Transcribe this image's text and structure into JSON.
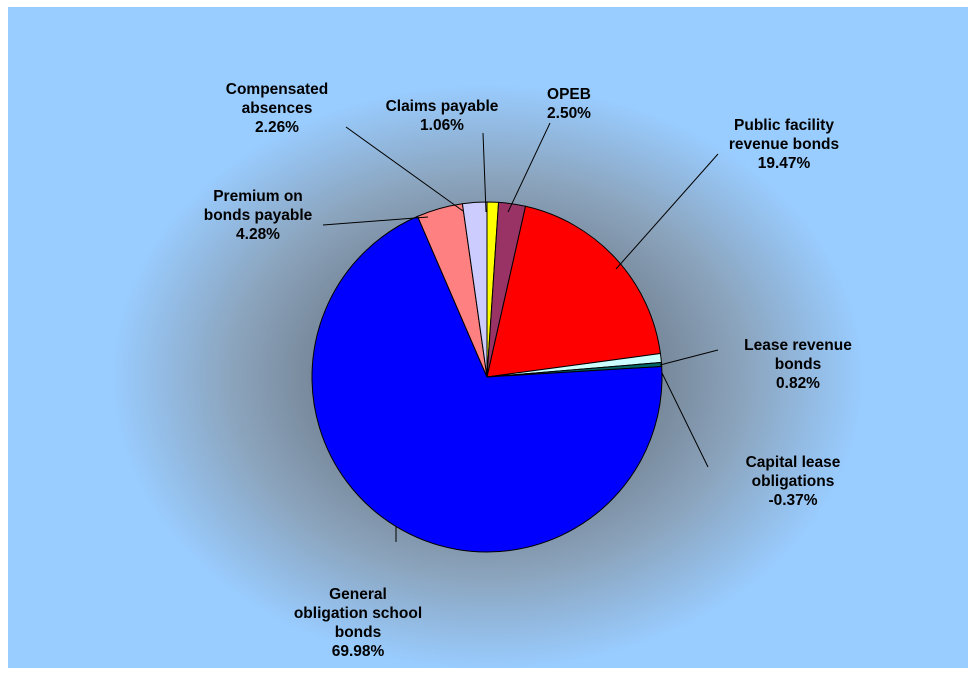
{
  "chart_data": {
    "type": "pie",
    "slices": [
      {
        "label": [
          "Claims payable",
          "1.06%"
        ],
        "value": 1.06,
        "color": "#ffff00"
      },
      {
        "label": [
          "OPEB",
          "2.50%"
        ],
        "value": 2.5,
        "color": "#993366"
      },
      {
        "label": [
          "Public facility",
          "revenue bonds",
          "19.47%"
        ],
        "value": 19.47,
        "color": "#ff0000"
      },
      {
        "label": [
          "Lease revenue",
          "bonds",
          "0.82%"
        ],
        "value": 0.82,
        "color": "#ccffff"
      },
      {
        "label": [
          "Capital lease",
          "obligations",
          "-0.37%"
        ],
        "value": -0.37,
        "color": "#006666"
      },
      {
        "label": [
          "General",
          "obligation school",
          "bonds",
          "69.98%"
        ],
        "value": 69.98,
        "color": "#0000ff"
      },
      {
        "label": [
          "Premium on",
          "bonds payable",
          "4.28%"
        ],
        "value": 4.28,
        "color": "#ff8080"
      },
      {
        "label": [
          "Compensated",
          "absences",
          "2.26%"
        ],
        "value": 2.26,
        "color": "#ccccff"
      }
    ],
    "start_angle_deg": 0,
    "direction": "clockwise",
    "legend": "none",
    "data_labels": "outside-with-leader-lines"
  }
}
